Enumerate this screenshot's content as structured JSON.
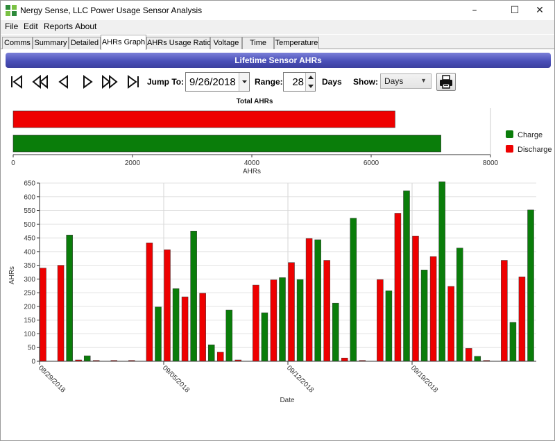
{
  "window": {
    "title": "Nergy Sense, LLC Power Usage Sensor Analysis",
    "controls": {
      "minimize": "–",
      "maximize": "☐",
      "close": "✕"
    }
  },
  "menu": [
    "File",
    "Edit",
    "Reports",
    "About"
  ],
  "tabs": [
    {
      "label": "Comms",
      "active": false
    },
    {
      "label": "Summary",
      "active": false
    },
    {
      "label": "Detailed",
      "active": false
    },
    {
      "label": "AHRs Graph",
      "active": true
    },
    {
      "label": "AHRs Usage Ratio",
      "active": false
    },
    {
      "label": "Voltage",
      "active": false
    },
    {
      "label": "Time",
      "active": false
    },
    {
      "label": "Temperature",
      "active": false
    }
  ],
  "banner": "Lifetime Sensor AHRs",
  "toolbar": {
    "nav_buttons": [
      "first-icon",
      "fast-back-icon",
      "back-icon",
      "forward-icon",
      "fast-forward-icon",
      "last-icon"
    ],
    "jump_label": "Jump To:",
    "jump_value": "9/26/2018",
    "range_label": "Range:",
    "range_value": "28",
    "range_unit": "Days",
    "show_label": "Show:",
    "show_value": "Days",
    "print_icon": "printer-icon"
  },
  "colors": {
    "charge": "#0a7d0a",
    "discharge": "#ee0000",
    "banner": "#4a4fb8"
  },
  "chart_data": [
    {
      "type": "bar",
      "orientation": "horizontal",
      "title": "Total AHRs",
      "xlabel": "AHRs",
      "xlim": [
        0,
        8000
      ],
      "xticks": [
        0,
        2000,
        4000,
        6000,
        8000
      ],
      "grid": false,
      "legend_position": "right",
      "series": [
        {
          "name": "Discharge",
          "color": "#ee0000",
          "value": 6400
        },
        {
          "name": "Charge",
          "color": "#0a7d0a",
          "value": 7170
        }
      ],
      "legend": [
        {
          "name": "Charge",
          "color": "#0a7d0a"
        },
        {
          "name": "Discharge",
          "color": "#ee0000"
        }
      ]
    },
    {
      "type": "bar",
      "title": "",
      "xlabel": "Date",
      "ylabel": "AHRs",
      "ylim": [
        0,
        650
      ],
      "yticks": [
        0,
        50,
        100,
        150,
        200,
        250,
        300,
        350,
        400,
        450,
        500,
        550,
        600,
        650
      ],
      "grid": true,
      "x_tick_labels": [
        {
          "label": "08/29/2018",
          "index": 0
        },
        {
          "label": "09/05/2018",
          "index": 7
        },
        {
          "label": "09/12/2018",
          "index": 14
        },
        {
          "label": "09/19/2018",
          "index": 21
        }
      ],
      "days": 28,
      "series": [
        {
          "name": "Charge",
          "color": "#0a7d0a",
          "values": [
            0,
            460,
            20,
            0,
            0,
            0,
            198,
            265,
            475,
            60,
            187,
            0,
            177,
            305,
            298,
            443,
            212,
            522,
            0,
            257,
            622,
            333,
            655,
            413,
            18,
            0,
            142,
            552
          ]
        },
        {
          "name": "Discharge",
          "color": "#ee0000",
          "values": [
            340,
            350,
            5,
            3,
            3,
            3,
            432,
            407,
            235,
            248,
            33,
            5,
            278,
            297,
            360,
            448,
            368,
            12,
            3,
            298,
            540,
            457,
            382,
            273,
            47,
            3,
            368,
            308
          ]
        }
      ]
    }
  ]
}
